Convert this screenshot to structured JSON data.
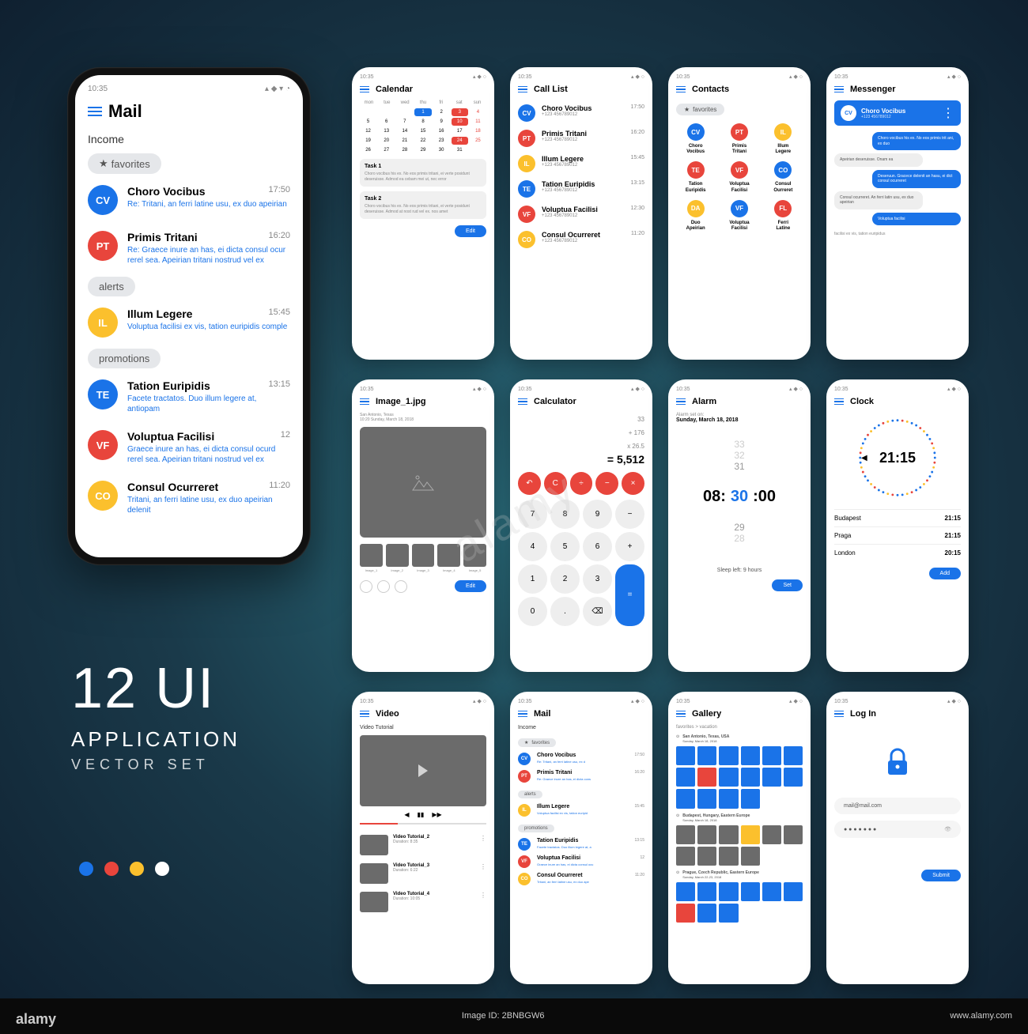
{
  "status_time": "10:35",
  "colors": {
    "blue": "#1a73e8",
    "red": "#e8453c",
    "yellow": "#fbc02d",
    "white": "#ffffff",
    "grey": "#6b6b6b"
  },
  "mail": {
    "title": "Mail",
    "income": "Income",
    "favorites": "favorites",
    "alerts": "alerts",
    "promotions": "promotions",
    "items": [
      {
        "initials": "CV",
        "color": "#1a73e8",
        "name": "Choro Vocibus",
        "time": "17:50",
        "preview": "Re:   Tritani, an ferri latine usu, ex duo apeirian"
      },
      {
        "initials": "PT",
        "color": "#e8453c",
        "name": "Primis Tritani",
        "time": "16:20",
        "preview": "Re:   Graece inure an has, ei dicta consul ocur rerel sea. Apeirian tritani nostrud vel ex"
      },
      {
        "initials": "IL",
        "color": "#fbc02d",
        "name": "Illum Legere",
        "time": "15:45",
        "preview": "Voluptua facilisi ex vis, tation euripidis comple"
      },
      {
        "initials": "TE",
        "color": "#1a73e8",
        "name": "Tation Euripidis",
        "time": "13:15",
        "preview": "Facete tractatos. Duo illum legere at, antiopam"
      },
      {
        "initials": "VF",
        "color": "#e8453c",
        "name": "Voluptua Facilisi",
        "time": "12",
        "preview": "Graece inure an has, ei dicta consul ocurd rerel sea. Apeirian tritani nostrud vel ex"
      },
      {
        "initials": "CO",
        "color": "#fbc02d",
        "name": "Consul Ocurreret",
        "time": "11:20",
        "preview": "Tritani, an ferri latine usu, ex duo apeirian delenit"
      }
    ]
  },
  "calendar": {
    "title": "Calendar",
    "dow": [
      "mon",
      "tue",
      "wed",
      "thu",
      "fri",
      "sat",
      "sun"
    ],
    "tasks": [
      {
        "title": "Task 1",
        "text": "Choro vocibus his ex. No eos primis tritani, ei verte posidunt deseruisse. Admod ea cebam mei ut, nec error"
      },
      {
        "title": "Task 2",
        "text": "Choro vocibus his ex. No eos primis tritani, ei verte posidunt deseruisse. Admod at nost rud vel ex. nos amet"
      }
    ],
    "edit": "Edit"
  },
  "call_list": {
    "title": "Call List",
    "items": [
      {
        "initials": "CV",
        "color": "#1a73e8",
        "name": "Choro Vocibus",
        "phone": "+123 456789012",
        "time": "17:50"
      },
      {
        "initials": "PT",
        "color": "#e8453c",
        "name": "Primis Tritani",
        "phone": "+123 456789012",
        "time": "16:20"
      },
      {
        "initials": "IL",
        "color": "#fbc02d",
        "name": "Illum Legere",
        "phone": "+123 456789012",
        "time": "15:45"
      },
      {
        "initials": "TE",
        "color": "#1a73e8",
        "name": "Tation Euripidis",
        "phone": "+123 456789012",
        "time": "13:15"
      },
      {
        "initials": "VF",
        "color": "#e8453c",
        "name": "Voluptua Facilisi",
        "phone": "+123 456789012",
        "time": "12:30"
      },
      {
        "initials": "CO",
        "color": "#fbc02d",
        "name": "Consul Ocurreret",
        "phone": "+123 456789012",
        "time": "11:20"
      }
    ]
  },
  "contacts": {
    "title": "Contacts",
    "favorites": "favorites",
    "items": [
      {
        "initials": "CV",
        "color": "#1a73e8",
        "name": "Choro Vocibus"
      },
      {
        "initials": "PT",
        "color": "#e8453c",
        "name": "Primis Tritani"
      },
      {
        "initials": "IL",
        "color": "#fbc02d",
        "name": "Illum Legere"
      },
      {
        "initials": "TE",
        "color": "#e8453c",
        "name": "Tation Euripidis"
      },
      {
        "initials": "VF",
        "color": "#e8453c",
        "name": "Voluptua Facilisi"
      },
      {
        "initials": "CO",
        "color": "#1a73e8",
        "name": "Consul Ourreret"
      },
      {
        "initials": "DA",
        "color": "#fbc02d",
        "name": "Duo Apeirian"
      },
      {
        "initials": "VF",
        "color": "#1a73e8",
        "name": "Voluptua Facilisi"
      },
      {
        "initials": "FL",
        "color": "#e8453c",
        "name": "Ferri Latine"
      }
    ]
  },
  "messenger": {
    "title": "Messenger",
    "contact": {
      "initials": "CV",
      "name": "Choro Vocibus",
      "phone": "+123 456789012"
    },
    "bubbles": [
      {
        "dir": "out",
        "text": "Choro vocibus his ex. No eos primis trit ani, ex duo"
      },
      {
        "dir": "in",
        "text": "Apeirian deseruisse. Onam ea"
      },
      {
        "dir": "out",
        "text": "Deseruun. Gracece delenit an hasu, ei dict consul ocurreret"
      },
      {
        "dir": "in",
        "text": "Consul ocurreret. An ferri latin usu, ex duo apeirian"
      },
      {
        "dir": "out",
        "text": "Voluptua facilisi"
      }
    ],
    "footer": "facilisi ex vis, tation euripidus"
  },
  "image": {
    "title": "Image_1.jpg",
    "location": "San Antonio, Texas",
    "date": "10:20 Sunday, March 18, 2018",
    "thumbs": [
      "Image_1",
      "Image_2",
      "Image_3",
      "Image_4",
      "Image_5"
    ],
    "edit": "Edit"
  },
  "calculator": {
    "title": "Calculator",
    "lines": [
      "33",
      "+ 176",
      "x 26.5"
    ],
    "result": "= 5,512",
    "ops": [
      "↶",
      "C",
      "÷",
      "−",
      "×"
    ],
    "keys": [
      "7",
      "8",
      "9",
      "−",
      "4",
      "5",
      "6",
      "+",
      "1",
      "2",
      "3",
      "=",
      "0",
      ".",
      "⌫"
    ]
  },
  "alarm": {
    "title": "Alarm",
    "set_on": "Alarm set on:",
    "date": "Sunday, March 18, 2018",
    "hours": "08:",
    "mins": "30",
    "secs": ":00",
    "fade_top": [
      "33",
      "32",
      "31"
    ],
    "fade_bot": [
      "29",
      "28"
    ],
    "sleep": "Sleep left:  9 hours",
    "set": "Set"
  },
  "clock": {
    "title": "Clock",
    "time": "21:15",
    "cities": [
      {
        "name": "Budapest",
        "time": "21:15"
      },
      {
        "name": "Praga",
        "time": "21:15"
      },
      {
        "name": "London",
        "time": "20:15"
      }
    ],
    "add": "Add"
  },
  "video": {
    "title": "Video",
    "subtitle": "Video Tutorial",
    "items": [
      {
        "title": "Video Tutorial_2",
        "sub": "Duration: 8:35"
      },
      {
        "title": "Video Tutorial_3",
        "sub": "Duration: 6:22"
      },
      {
        "title": "Video Tutorial_4",
        "sub": "Duration: 10:05"
      }
    ]
  },
  "gallery": {
    "title": "Gallery",
    "breadcrumb": "favorites > vacation",
    "sections": [
      {
        "label": "San Antonio, Texas, USA",
        "date": "Sunday, March 18, 2018",
        "tiles": [
          "#1a73e8",
          "#1a73e8",
          "#1a73e8",
          "#1a73e8",
          "#1a73e8",
          "#1a73e8",
          "#1a73e8",
          "#e8453c",
          "#1a73e8",
          "#1a73e8",
          "#1a73e8",
          "#1a73e8",
          "#1a73e8",
          "#1a73e8",
          "#1a73e8",
          "#1a73e8"
        ]
      },
      {
        "label": "Budapest, Hungary, Eastern Europe",
        "date": "Sunday, March 18, 2018",
        "tiles": [
          "#6b6b6b",
          "#6b6b6b",
          "#6b6b6b",
          "#fbc02d",
          "#6b6b6b",
          "#6b6b6b",
          "#6b6b6b",
          "#6b6b6b",
          "#6b6b6b",
          "#6b6b6b"
        ]
      },
      {
        "label": "Prague, Czech Republic, Eastern Europe",
        "date": "Sunday, March 22-23, 2018",
        "tiles": [
          "#1a73e8",
          "#1a73e8",
          "#1a73e8",
          "#1a73e8",
          "#1a73e8",
          "#1a73e8",
          "#e8453c",
          "#1a73e8",
          "#1a73e8"
        ]
      }
    ]
  },
  "login": {
    "title": "Log In",
    "email": "mail@mail.com",
    "password": "● ● ● ● ● ● ●",
    "submit": "Submit"
  },
  "main_title": {
    "h1": "12 UI",
    "h2": "APPLICATION",
    "h3": "VECTOR SET"
  },
  "watermark": {
    "left": "alamy",
    "center": "alamy",
    "id": "Image ID: 2BNBGW6",
    "url": "www.alamy.com"
  }
}
